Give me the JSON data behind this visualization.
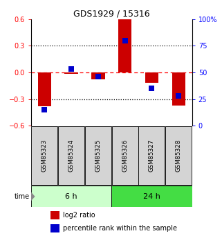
{
  "title": "GDS1929 / 15316",
  "samples": [
    "GSM85323",
    "GSM85324",
    "GSM85325",
    "GSM85326",
    "GSM85327",
    "GSM85328"
  ],
  "log2_ratio": [
    -0.38,
    -0.02,
    -0.08,
    0.6,
    -0.12,
    -0.37
  ],
  "percentile_rank": [
    15,
    53,
    46,
    80,
    35,
    28
  ],
  "groups": [
    {
      "label": "6 h",
      "color_light": "#ccffcc",
      "color_dark": "#55dd55"
    },
    {
      "label": "24 h",
      "color_light": "#ccffcc",
      "color_dark": "#33cc33"
    }
  ],
  "bar_color": "#cc0000",
  "dot_color": "#0000cc",
  "ylim_left": [
    -0.6,
    0.6
  ],
  "ylim_right": [
    0,
    100
  ],
  "yticks_left": [
    -0.6,
    -0.3,
    0.0,
    0.3,
    0.6
  ],
  "yticks_right": [
    0,
    25,
    50,
    75,
    100
  ],
  "ytick_labels_right": [
    "0",
    "25",
    "50",
    "75",
    "100%"
  ],
  "background_color": "#ffffff",
  "bar_width": 0.5,
  "dot_size": 30,
  "legend_items": [
    "log2 ratio",
    "percentile rank within the sample"
  ]
}
